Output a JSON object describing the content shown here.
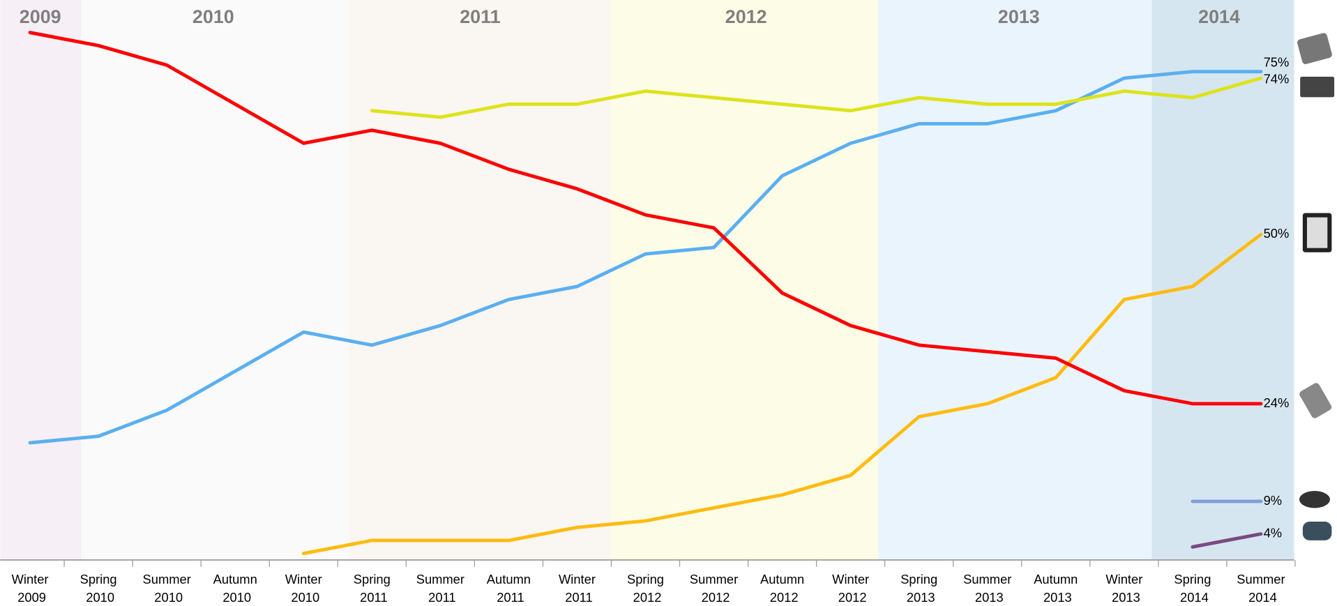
{
  "chart_data": {
    "type": "line",
    "years": [
      "2009",
      "2010",
      "2011",
      "2012",
      "2013",
      "2014"
    ],
    "categories": [
      "Winter 2009",
      "Spring 2010",
      "Summer 2010",
      "Autumn 2010",
      "Winter 2010",
      "Spring 2011",
      "Summer 2011",
      "Autumn 2011",
      "Winter 2011",
      "Spring 2012",
      "Summer 2012",
      "Autumn 2012",
      "Winter 2012",
      "Spring 2013",
      "Summer 2013",
      "Autumn 2013",
      "Winter 2013",
      "Spring 2014",
      "Summer 2014"
    ],
    "ylim": [
      0,
      86
    ],
    "series": [
      {
        "color": "#5aaff0",
        "values": [
          18,
          19,
          23,
          29,
          35,
          33,
          36,
          40,
          42,
          47,
          48,
          59,
          64,
          67,
          67,
          69,
          74,
          75,
          75
        ],
        "value_labels": [
          null,
          null,
          null,
          null,
          null,
          null,
          null,
          null,
          null,
          null,
          null,
          null,
          null,
          null,
          null,
          null,
          null,
          null,
          "75%"
        ]
      },
      {
        "color": "#dde31c",
        "values": [
          null,
          null,
          null,
          null,
          null,
          69,
          68,
          70,
          70,
          72,
          71,
          70,
          69,
          71,
          70,
          70,
          72,
          71,
          74
        ],
        "value_labels": [
          null,
          null,
          null,
          null,
          null,
          null,
          null,
          null,
          null,
          null,
          null,
          null,
          null,
          null,
          null,
          null,
          null,
          null,
          "74%"
        ]
      },
      {
        "color": "#ffbb11",
        "values": [
          null,
          null,
          null,
          null,
          1,
          3,
          3,
          3,
          5,
          6,
          8,
          10,
          13,
          22,
          24,
          28,
          40,
          42,
          50
        ],
        "value_labels": [
          null,
          null,
          null,
          null,
          null,
          null,
          null,
          null,
          null,
          null,
          null,
          null,
          null,
          null,
          null,
          null,
          null,
          null,
          "50%"
        ]
      },
      {
        "color": "#ff0000",
        "values": [
          81,
          79,
          76,
          70,
          64,
          66,
          64,
          60,
          57,
          53,
          51,
          41,
          36,
          33,
          32,
          31,
          26,
          24,
          24
        ],
        "value_labels": [
          null,
          null,
          null,
          null,
          null,
          null,
          null,
          null,
          null,
          null,
          null,
          null,
          null,
          null,
          null,
          null,
          null,
          null,
          "24%"
        ]
      },
      {
        "color": "#7f9fd8",
        "values": [
          null,
          null,
          null,
          null,
          null,
          null,
          null,
          null,
          null,
          null,
          null,
          null,
          null,
          null,
          null,
          null,
          null,
          9,
          9
        ],
        "value_labels": [
          null,
          null,
          null,
          null,
          null,
          null,
          null,
          null,
          null,
          null,
          null,
          null,
          null,
          null,
          null,
          null,
          null,
          null,
          "9%"
        ]
      },
      {
        "color": "#7a4a80",
        "values": [
          null,
          null,
          null,
          null,
          null,
          null,
          null,
          null,
          null,
          null,
          null,
          null,
          null,
          null,
          null,
          null,
          null,
          2,
          4
        ],
        "value_labels": [
          null,
          null,
          null,
          null,
          null,
          null,
          null,
          null,
          null,
          null,
          null,
          null,
          null,
          null,
          null,
          null,
          null,
          null,
          "4%"
        ]
      }
    ]
  }
}
